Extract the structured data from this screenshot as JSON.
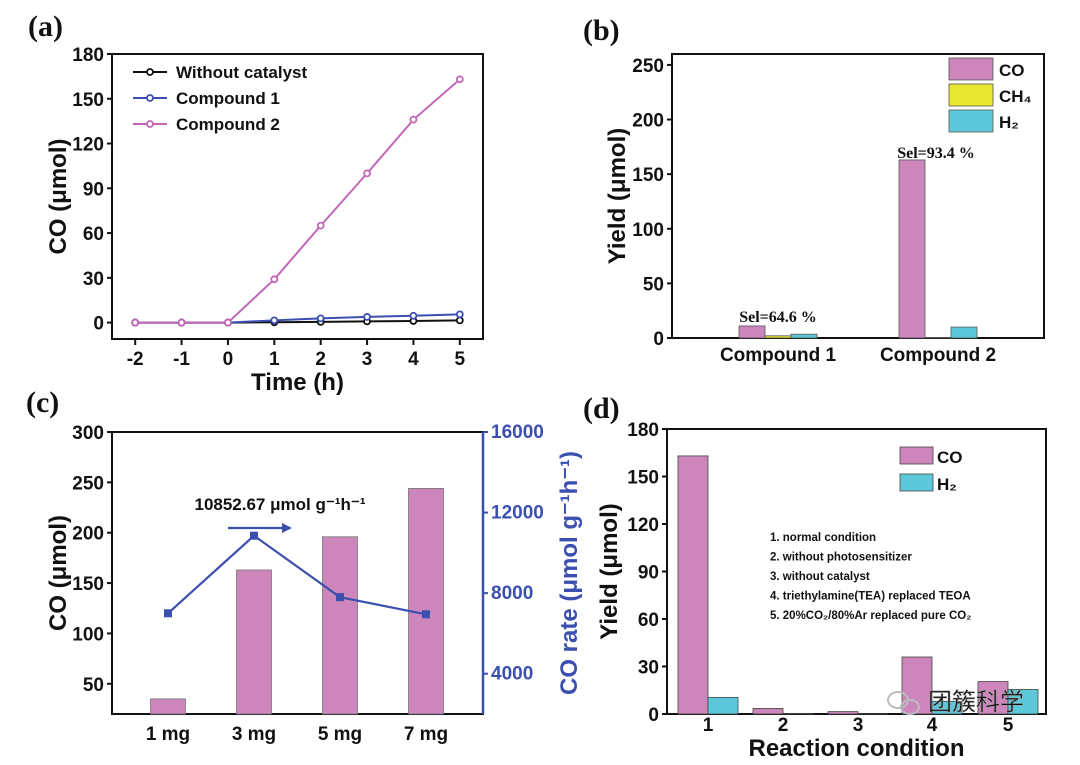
{
  "chart_data": [
    {
      "panel": "(a)",
      "type": "line",
      "xlabel": "Time (h)",
      "ylabel": "CO (μmol)",
      "xlim": [
        -2.5,
        5.5
      ],
      "ylim": [
        -11,
        180
      ],
      "xticks": [
        -2,
        -1,
        0,
        1,
        2,
        3,
        4,
        5
      ],
      "yticks": [
        0,
        30,
        60,
        90,
        120,
        150,
        180
      ],
      "legend_position": "top-left",
      "x": [
        -2,
        -1,
        0,
        1,
        2,
        3,
        4,
        5
      ],
      "series": [
        {
          "name": "Without catalyst",
          "color": "#111111",
          "values": [
            0,
            0,
            0,
            0.2,
            0.5,
            0.8,
            1.1,
            1.5
          ]
        },
        {
          "name": "Compound 1",
          "color": "#3b4fb0",
          "values": [
            0,
            0,
            0,
            1.5,
            2.8,
            3.8,
            4.6,
            5.5
          ]
        },
        {
          "name": "Compound 2",
          "color": "#c466b8",
          "values": [
            0,
            0,
            0,
            29,
            65,
            100,
            136,
            163
          ]
        }
      ]
    },
    {
      "panel": "(b)",
      "type": "bar",
      "ylabel": "Yield (μmol)",
      "ylim": [
        0,
        260
      ],
      "yticks": [
        0,
        50,
        100,
        150,
        200,
        250
      ],
      "legend_position": "top-right",
      "categories": [
        "Compound 1",
        "Compound 2"
      ],
      "series": [
        {
          "name": "CO",
          "color": "#cc86bb",
          "values": [
            11,
            163
          ]
        },
        {
          "name": "CH₄",
          "color": "#e8e62e",
          "values": [
            2,
            0.5
          ]
        },
        {
          "name": "H₂",
          "color": "#5cc8d9",
          "values": [
            3.5,
            10
          ]
        }
      ],
      "annotations": [
        "Sel=64.6 %",
        "Sel=93.4 %"
      ]
    },
    {
      "panel": "(c)",
      "type": "bar",
      "ylabel": "CO (μmol)",
      "ylabel_right": "CO rate (μmol g⁻¹h⁻¹)",
      "ylim": [
        20,
        300
      ],
      "ylim_right": [
        2000,
        16000
      ],
      "yticks": [
        50,
        100,
        150,
        200,
        250,
        300
      ],
      "yticks_right": [
        4000,
        8000,
        12000,
        16000
      ],
      "categories": [
        "1 mg",
        "3 mg",
        "5 mg",
        "7 mg"
      ],
      "series": [
        {
          "axis": "left",
          "kind": "bar",
          "color": "#cc86bb",
          "values": [
            35,
            163,
            196,
            244
          ]
        },
        {
          "axis": "right",
          "kind": "line",
          "color": "#3b4fb0",
          "values": [
            7000,
            10852.67,
            7800,
            6950
          ]
        }
      ],
      "annotation": "10852.67 μmol g⁻¹h⁻¹"
    },
    {
      "panel": "(d)",
      "type": "bar",
      "xlabel": "Reaction condition",
      "ylabel": "Yield (μmol)",
      "ylim": [
        0,
        180
      ],
      "yticks": [
        0,
        30,
        60,
        90,
        120,
        150,
        180
      ],
      "legend_position": "top-right",
      "categories": [
        "1",
        "2",
        "3",
        "4",
        "5"
      ],
      "series": [
        {
          "name": "CO",
          "color": "#cc86bb",
          "values": [
            163,
            3.5,
            1.5,
            36,
            20.5
          ]
        },
        {
          "name": "H₂",
          "color": "#5cc8d9",
          "values": [
            10.5,
            0.3,
            0.2,
            8,
            15.5
          ]
        }
      ],
      "conditions": [
        "1. normal condition",
        "2. without photosensitizer",
        "3. without catalyst",
        "4. triethylamine(TEA) replaced TEOA",
        "5. 20%CO₂/80%Ar replaced pure CO₂"
      ]
    }
  ],
  "watermark": "团簇科学"
}
